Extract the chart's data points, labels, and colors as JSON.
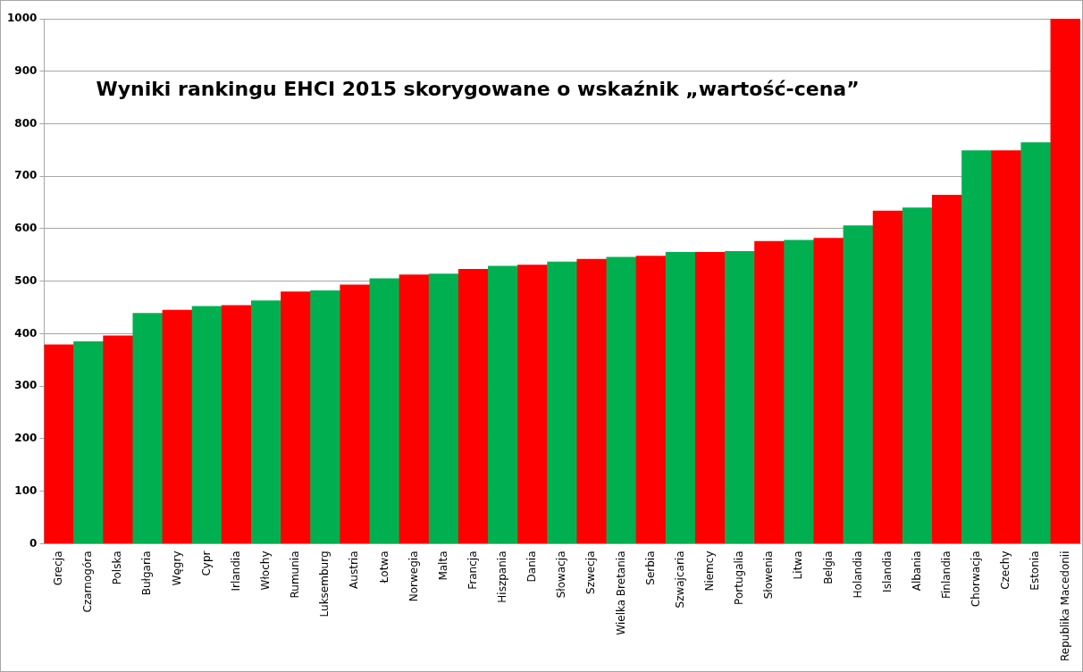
{
  "chart_data": {
    "type": "bar",
    "title": "Wyniki rankingu EHCI 2015 skorygowane o wskaźnik „wartość-cena”",
    "categories": [
      "Grecja",
      "Czarnogóra",
      "Polska",
      "Bułgaria",
      "Węgry",
      "Cypr",
      "Irlandia",
      "Włochy",
      "Rumunia",
      "Luksemburg",
      "Austria",
      "Łotwa",
      "Norwegia",
      "Malta",
      "Francja",
      "Hiszpania",
      "Dania",
      "Słowacja",
      "Szwecja",
      "Wielka Bretania",
      "Serbia",
      "Szwajcaria",
      "Niemcy",
      "Portugalia",
      "Słowenia",
      "Litwa",
      "Belgia",
      "Holandia",
      "Islandia",
      "Albania",
      "Finlandia",
      "Chorwacja",
      "Czechy",
      "Estonia",
      "Republika Macedonii"
    ],
    "values": [
      379,
      385,
      396,
      439,
      445,
      452,
      454,
      463,
      480,
      482,
      493,
      505,
      512,
      514,
      523,
      529,
      531,
      537,
      542,
      546,
      548,
      555,
      555,
      557,
      576,
      578,
      582,
      606,
      634,
      640,
      664,
      749,
      749,
      764,
      1000
    ],
    "colors": [
      "#ff0000",
      "#00b050",
      "#ff0000",
      "#00b050",
      "#ff0000",
      "#00b050",
      "#ff0000",
      "#00b050",
      "#ff0000",
      "#00b050",
      "#ff0000",
      "#00b050",
      "#ff0000",
      "#00b050",
      "#ff0000",
      "#00b050",
      "#ff0000",
      "#00b050",
      "#ff0000",
      "#00b050",
      "#ff0000",
      "#00b050",
      "#ff0000",
      "#00b050",
      "#ff0000",
      "#00b050",
      "#ff0000",
      "#00b050",
      "#ff0000",
      "#00b050",
      "#ff0000",
      "#00b050",
      "#ff0000",
      "#00b050",
      "#ff0000"
    ],
    "ylim": [
      0,
      1000
    ],
    "yticks": [
      0,
      100,
      200,
      300,
      400,
      500,
      600,
      700,
      800,
      900,
      1000
    ],
    "grid": "y",
    "legend": false
  }
}
